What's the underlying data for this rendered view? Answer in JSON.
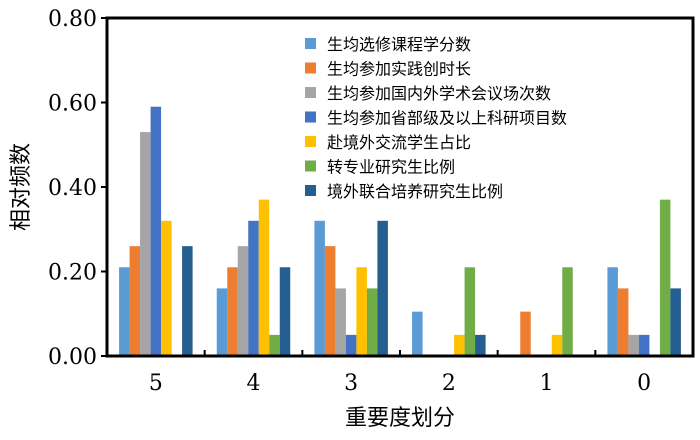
{
  "chart_data": {
    "type": "bar",
    "title": "",
    "xlabel": "重要度划分",
    "ylabel": "相对频数",
    "ylim": [
      0,
      0.8
    ],
    "yticks": [
      "0.00",
      "0.20",
      "0.40",
      "0.60",
      "0.80"
    ],
    "categories": [
      "5",
      "4",
      "3",
      "2",
      "1",
      "0"
    ],
    "grid": false,
    "legend_position": "top-right",
    "series": [
      {
        "name": "生均选修课程学分数",
        "color": "#5b9bd5",
        "values": [
          0.21,
          0.16,
          0.32,
          0.105,
          0.0,
          0.21
        ]
      },
      {
        "name": "生均参加实践创时长",
        "color": "#ed7d31",
        "values": [
          0.26,
          0.21,
          0.26,
          0.0,
          0.105,
          0.16
        ]
      },
      {
        "name": "生均参加国内外学术会议场次数",
        "color": "#a5a5a5",
        "values": [
          0.53,
          0.26,
          0.16,
          0.0,
          0.0,
          0.05
        ]
      },
      {
        "name": "生均参加省部级及以上科研项目数",
        "color": "#4472c4",
        "values": [
          0.59,
          0.32,
          0.05,
          0.0,
          0.0,
          0.05
        ]
      },
      {
        "name": "赴境外交流学生占比",
        "color": "#ffc000",
        "values": [
          0.32,
          0.37,
          0.21,
          0.05,
          0.05,
          0.0
        ]
      },
      {
        "name": "转专业研究生比例",
        "color": "#70ad47",
        "values": [
          0.0,
          0.05,
          0.16,
          0.21,
          0.21,
          0.37
        ]
      },
      {
        "name": "境外联合培养研究生比例",
        "color": "#255e91",
        "values": [
          0.26,
          0.21,
          0.32,
          0.05,
          0.0,
          0.16
        ]
      }
    ]
  }
}
